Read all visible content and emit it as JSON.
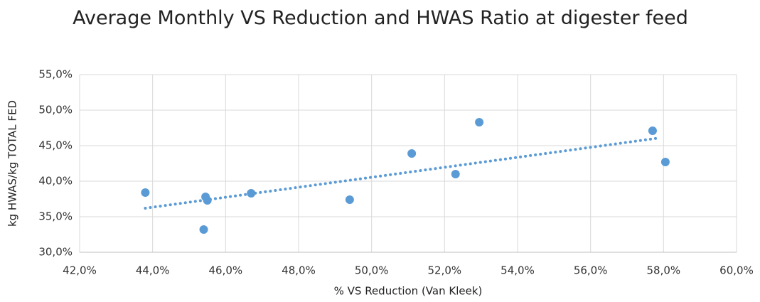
{
  "chart_data": {
    "type": "scatter",
    "title": "Average Monthly VS Reduction and HWAS Ratio at digester feed",
    "x_label": "% VS Reduction (Van Kleek)",
    "y_label": "kg HWAS/kg  TOTAL FED",
    "color": "#5b9bd5",
    "grid": true,
    "x": [
      43.8,
      45.45,
      45.5,
      45.4,
      46.7,
      49.4,
      51.1,
      52.3,
      52.95,
      57.7,
      58.05
    ],
    "y": [
      38.4,
      37.8,
      37.3,
      33.2,
      38.3,
      37.4,
      43.9,
      41.0,
      48.3,
      47.1,
      42.7
    ],
    "trendline": {
      "x": [
        43.8,
        57.9
      ],
      "y": [
        36.2,
        46.1
      ]
    },
    "xlim": [
      42,
      60
    ],
    "xticks": [
      {
        "value": 42,
        "label": "42,0%"
      },
      {
        "value": 44,
        "label": "44,0%"
      },
      {
        "value": 46,
        "label": "46,0%"
      },
      {
        "value": 48,
        "label": "48,0%"
      },
      {
        "value": 50,
        "label": "50,0%"
      },
      {
        "value": 52,
        "label": "52,0%"
      },
      {
        "value": 54,
        "label": "54,0%"
      },
      {
        "value": 56,
        "label": "56,0%"
      },
      {
        "value": 58,
        "label": "58,0%"
      },
      {
        "value": 60,
        "label": "60,0%"
      }
    ],
    "ylim": [
      30,
      55
    ],
    "yticks": [
      {
        "value": 30,
        "label": "30,0%"
      },
      {
        "value": 35,
        "label": "35,0%"
      },
      {
        "value": 40,
        "label": "40,0%"
      },
      {
        "value": 45,
        "label": "45,0%"
      },
      {
        "value": 50,
        "label": "50,0%"
      },
      {
        "value": 55,
        "label": "55,0%"
      }
    ]
  }
}
